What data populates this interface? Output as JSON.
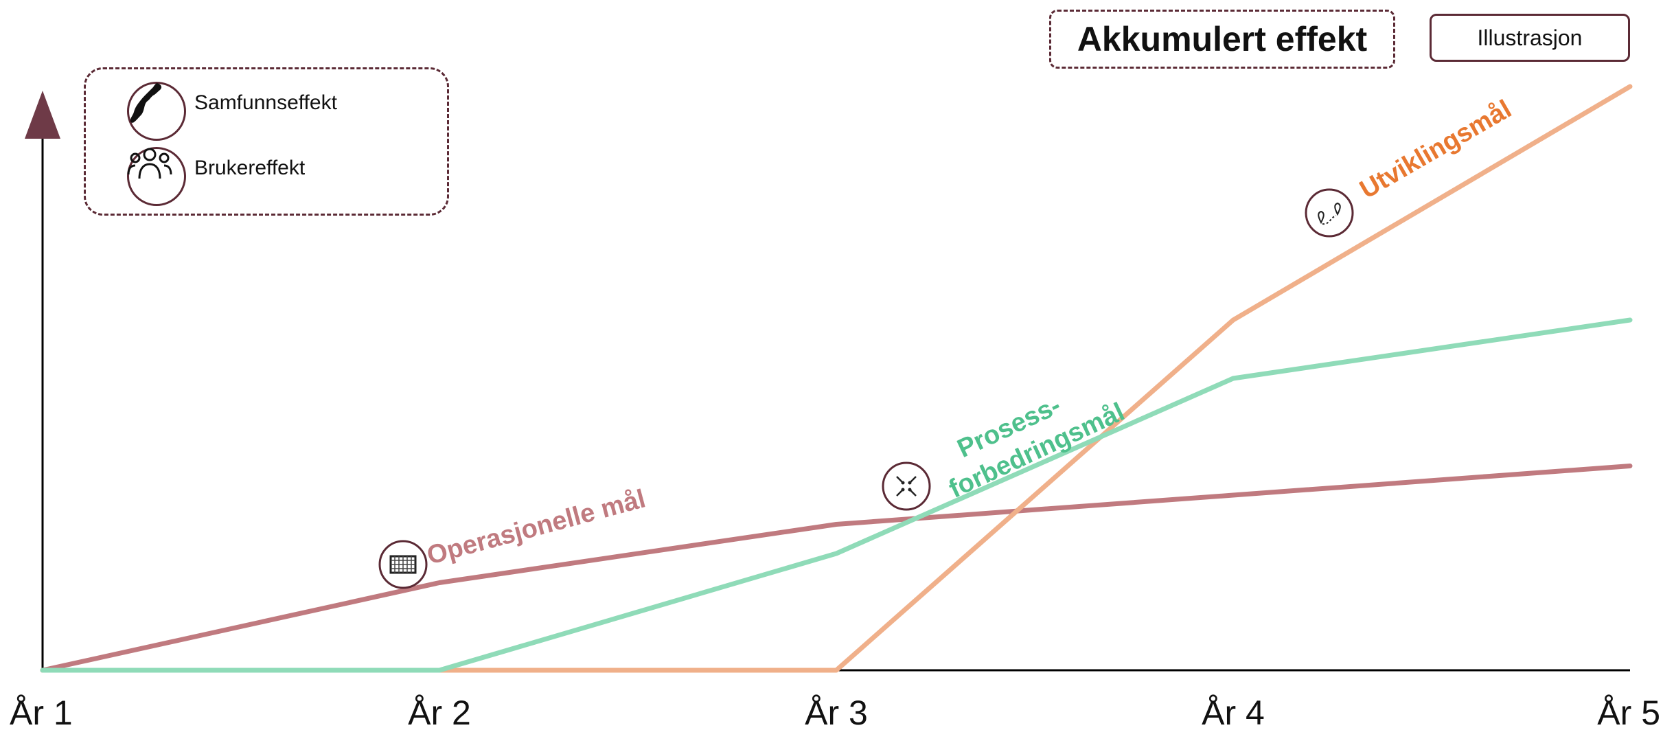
{
  "chart_data": {
    "type": "line",
    "title": "Akkumulert effekt",
    "badge": "Illustrasjon",
    "categories": [
      "År 1",
      "År 2",
      "År 3",
      "År 4",
      "År 5"
    ],
    "ylim": [
      0,
      100
    ],
    "grid": false,
    "legend_placement": "top-left",
    "legend": [
      {
        "label": "Samfunnseffekt",
        "icon": "norway-map-icon"
      },
      {
        "label": "Brukereffekt",
        "icon": "users-icon"
      }
    ],
    "series": [
      {
        "name": "Operasjonelle mål",
        "color": "#c07a7f",
        "label_color": "#c07a7f",
        "icon": "goal-net-icon",
        "values": [
          0,
          15,
          25,
          30,
          35
        ]
      },
      {
        "name": "Prosess-forbedringsmål",
        "label_lines": [
          "Prosess-",
          "forbedringsmål"
        ],
        "color": "#8fdbb8",
        "label_color": "#4ec08c",
        "icon": "process-arrows-icon",
        "values": [
          0,
          0,
          20,
          50,
          60
        ]
      },
      {
        "name": "Utviklingsmål",
        "color": "#f0b08a",
        "label_color": "#e87830",
        "icon": "route-pins-icon",
        "values": [
          0,
          0,
          0,
          60,
          100
        ]
      }
    ]
  },
  "colors": {
    "axis": "#000000",
    "accent": "#6e3a47",
    "border": "#5b2a35"
  }
}
